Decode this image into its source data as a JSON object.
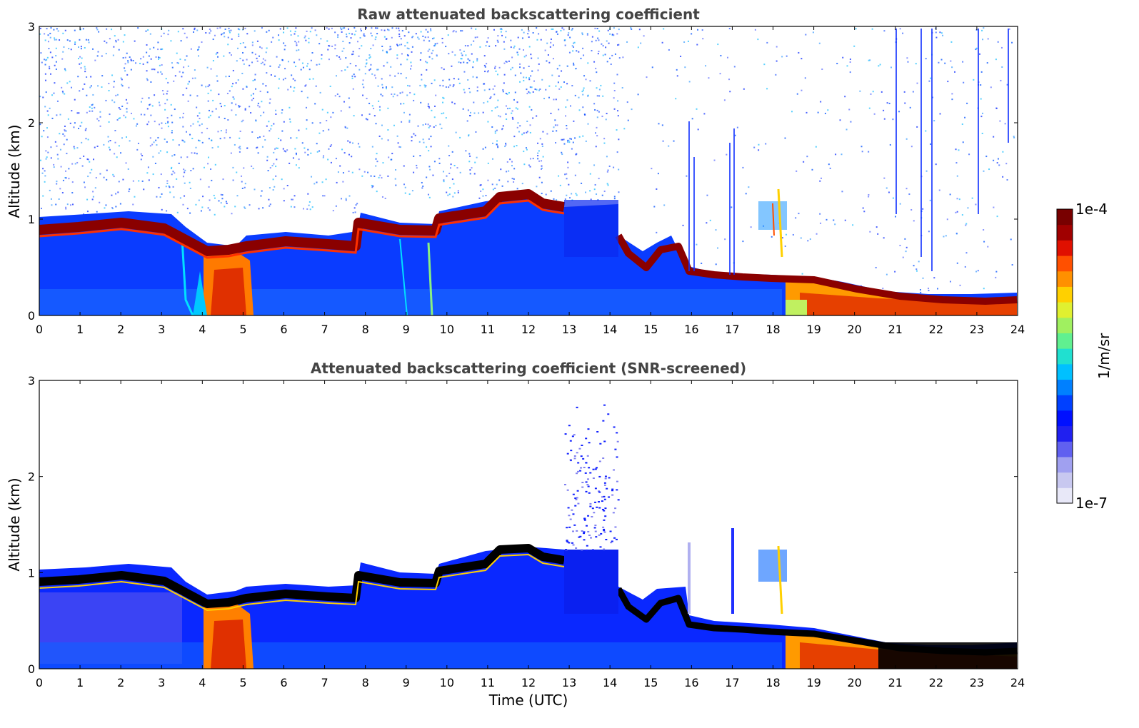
{
  "chart_data": [
    {
      "type": "heatmap",
      "title": "Raw attenuated backscattering coefficient",
      "xlabel": "",
      "ylabel": "Altitude (km)",
      "xlim": [
        0,
        24
      ],
      "ylim": [
        0,
        3
      ],
      "xticks": [
        0,
        1,
        2,
        3,
        4,
        5,
        6,
        7,
        8,
        9,
        10,
        11,
        12,
        13,
        14,
        15,
        16,
        17,
        18,
        19,
        20,
        21,
        22,
        23,
        24
      ],
      "yticks": [
        0,
        1,
        2,
        3
      ],
      "boundary_layer_top_km": [
        [
          0,
          0.9
        ],
        [
          1,
          0.93
        ],
        [
          2,
          0.95
        ],
        [
          3,
          0.88
        ],
        [
          3.5,
          0.8
        ],
        [
          4,
          0.65
        ],
        [
          4.5,
          0.6
        ],
        [
          5,
          0.7
        ],
        [
          6,
          0.72
        ],
        [
          7,
          0.72
        ],
        [
          7.8,
          0.7
        ],
        [
          7.85,
          0.92
        ],
        [
          9,
          0.85
        ],
        [
          9.7,
          0.85
        ],
        [
          9.8,
          0.98
        ],
        [
          10.8,
          1.05
        ],
        [
          11.2,
          1.18
        ],
        [
          12,
          1.1
        ],
        [
          12.8,
          1.1
        ]
      ]
    },
    {
      "type": "heatmap",
      "title": "Attenuated backscattering coefficient (SNR-screened)",
      "xlabel": "Time (UTC)",
      "ylabel": "Altitude (km)",
      "xlim": [
        0,
        24
      ],
      "ylim": [
        0,
        3
      ],
      "xticks": [
        0,
        1,
        2,
        3,
        4,
        5,
        6,
        7,
        8,
        9,
        10,
        11,
        12,
        13,
        14,
        15,
        16,
        17,
        18,
        19,
        20,
        21,
        22,
        23,
        24
      ],
      "yticks": [
        0,
        1,
        2,
        3
      ]
    }
  ],
  "colorbar": {
    "label": "1/m/sr",
    "min_label": "1e-7",
    "max_label": "1e-4",
    "colors": [
      "#e8e8f8",
      "#c8c8f0",
      "#a0a0f0",
      "#6060f0",
      "#2020f0",
      "#0010ff",
      "#0040ff",
      "#0080ff",
      "#00c0ff",
      "#20e0d0",
      "#60f090",
      "#a0f060",
      "#e0f030",
      "#ffd000",
      "#ff9000",
      "#ff5000",
      "#e01000",
      "#a00000",
      "#780000"
    ]
  }
}
